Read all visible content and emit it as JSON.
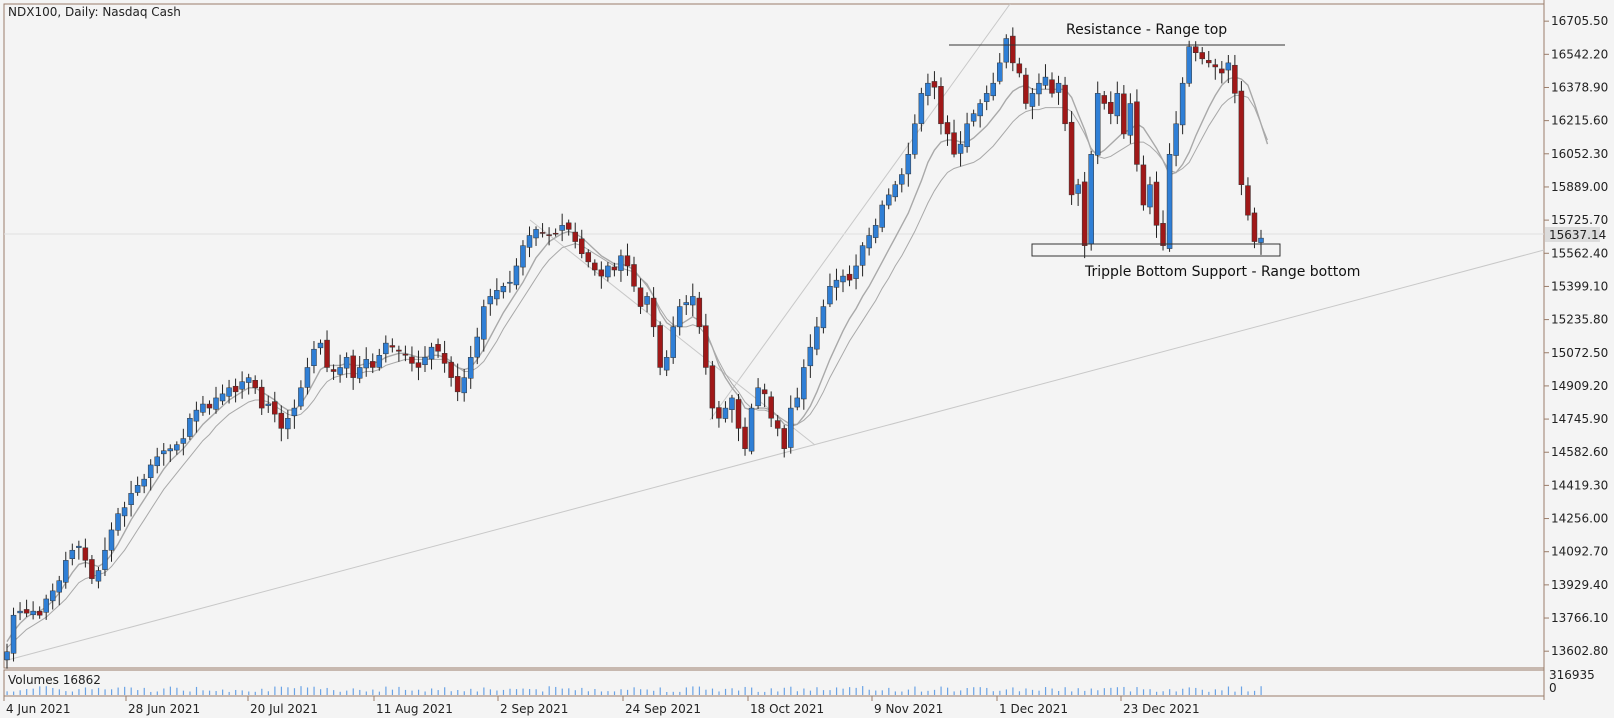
{
  "header": {
    "title": "NDX100, Daily:  Nasdaq Cash"
  },
  "volume_panel": {
    "label": "Volumes 16862",
    "scale_top": "316935",
    "scale_bottom": "0"
  },
  "colors": {
    "bull": "#2f7fd6",
    "bear": "#a01818",
    "ma": "#a9a9a9",
    "frame": "#9a7d6a",
    "line": "#c8c8c8",
    "volume": "#6aa3e6"
  },
  "annotations": {
    "resistance": "Resistance - Range top",
    "support": "Tripple Bottom Support - Range bottom",
    "current_price": "15637.14"
  },
  "chart_data": {
    "type": "candlestick",
    "title": "NDX100, Daily:  Nasdaq Cash",
    "ylabels": [
      "16705.50",
      "16542.20",
      "16378.90",
      "16215.60",
      "16052.30",
      "15889.00",
      "15725.70",
      "15562.40",
      "15399.10",
      "15235.80",
      "15072.50",
      "14909.20",
      "14745.90",
      "14582.60",
      "14419.30",
      "14256.00",
      "14092.70",
      "13929.40",
      "13766.10",
      "13602.80"
    ],
    "xlabels": [
      "4 Jun 2021",
      "28 Jun 2021",
      "20 Jul 2021",
      "11 Aug 2021",
      "2 Sep 2021",
      "24 Sep 2021",
      "18 Oct 2021",
      "9 Nov 2021",
      "1 Dec 2021",
      "23 Dec 2021"
    ],
    "ylim": [
      13520,
      16790
    ],
    "grid": false,
    "resistance_level": 16595,
    "support_zone": [
      15545,
      15595
    ],
    "close_series": [
      13600,
      13780,
      13800,
      13790,
      13800,
      13780,
      13860,
      13900,
      13950,
      14050,
      14100,
      14120,
      14050,
      13960,
      14000,
      14100,
      14200,
      14280,
      14310,
      14380,
      14420,
      14450,
      14520,
      14560,
      14590,
      14600,
      14620,
      14650,
      14750,
      14790,
      14820,
      14800,
      14850,
      14870,
      14900,
      14880,
      14930,
      14950,
      14900,
      14800,
      14820,
      14770,
      14700,
      14750,
      14800,
      14900,
      15000,
      15090,
      15120,
      15000,
      14980,
      15000,
      15050,
      14950,
      15000,
      15040,
      15000,
      15060,
      15120,
      15100,
      15080,
      15060,
      15020,
      15000,
      15050,
      15100,
      15080,
      15020,
      14950,
      14880,
      14950,
      15050,
      15150,
      15300,
      15350,
      15380,
      15400,
      15420,
      15500,
      15600,
      15650,
      15680,
      15660,
      15650,
      15660,
      15700,
      15680,
      15620,
      15560,
      15520,
      15480,
      15450,
      15500,
      15480,
      15550,
      15500,
      15400,
      15300,
      15350,
      15200,
      15000,
      15050,
      15200,
      15300,
      15320,
      15350,
      15200,
      15000,
      14800,
      14750,
      14800,
      14850,
      14700,
      14600,
      14800,
      14900,
      14870,
      14750,
      14700,
      14600,
      14800,
      14850,
      15000,
      15100,
      15200,
      15300,
      15400,
      15430,
      15450,
      15430,
      15500,
      15600,
      15650,
      15700,
      15800,
      15850,
      15900,
      15950,
      16050,
      16200,
      16350,
      16400,
      16380,
      16200,
      16150,
      16050,
      16100,
      16200,
      16250,
      16300,
      16350,
      16400,
      16500,
      16620,
      16500,
      16450,
      16300,
      16350,
      16400,
      16430,
      16350,
      16400,
      16200,
      15850,
      15900,
      15600,
      16050,
      16350,
      16300,
      16250,
      16350,
      16150,
      16300,
      16000,
      15800,
      15900,
      15700,
      15600,
      16050,
      16200,
      16400,
      16580,
      16550,
      16520,
      16500,
      16480,
      16450,
      16500,
      16350,
      15900,
      15750,
      15620,
      15637
    ],
    "ma_fast": [
      13650,
      13700,
      13740,
      13770,
      13790,
      13800,
      13820,
      13850,
      13890,
      13940,
      13990,
      14030,
      14040,
      14030,
      14020,
      14040,
      14080,
      14130,
      14190,
      14250,
      14300,
      14350,
      14400,
      14450,
      14500,
      14540,
      14570,
      14600,
      14640,
      14680,
      14720,
      14750,
      14780,
      14810,
      14840,
      14860,
      14880,
      14900,
      14900,
      14880,
      14860,
      14840,
      14810,
      14790,
      14790,
      14820,
      14870,
      14930,
      14990,
      15010,
      15010,
      15010,
      15020,
      15010,
      15010,
      15020,
      15020,
      15030,
      15050,
      15060,
      15070,
      15070,
      15060,
      15050,
      15050,
      15060,
      15060,
      15050,
      15030,
      15000,
      14990,
      15000,
      15040,
      15090,
      15150,
      15210,
      15270,
      15320,
      15370,
      15420,
      15480,
      15540,
      15580,
      15620,
      15640,
      15660,
      15670,
      15660,
      15640,
      15610,
      15580,
      15550,
      15530,
      15510,
      15510,
      15500,
      15480,
      15440,
      15410,
      15350,
      15270,
      15220,
      15200,
      15210,
      15230,
      15250,
      15230,
      15180,
      15100,
      15010,
      14950,
      14900,
      14860,
      14800,
      14790,
      14800,
      14800,
      14790,
      14760,
      14720,
      14710,
      14720,
      14760,
      14810,
      14880,
      14960,
      15040,
      15110,
      15180,
      15240,
      15290,
      15350,
      15400,
      15460,
      15520,
      15580,
      15640,
      15700,
      15760,
      15840,
      15920,
      16010,
      16070,
      16110,
      16120,
      16120,
      16110,
      16110,
      16130,
      16160,
      16190,
      16230,
      16270,
      16320,
      16360,
      16380,
      16390,
      16370,
      16370,
      16370,
      16370,
      16370,
      16370,
      16330,
      16250,
      16170,
      16070,
      16050,
      16070,
      16100,
      16130,
      16160,
      16170,
      16200,
      16180,
      16130,
      16080,
      16020,
      15950,
      15960,
      16000,
      16060,
      16140,
      16210,
      16280,
      16340,
      16390,
      16420,
      16430,
      16420,
      16390,
      16300,
      16200,
      16100
    ],
    "ma_slow": [
      13620,
      13650,
      13680,
      13710,
      13730,
      13750,
      13770,
      13800,
      13830,
      13860,
      13900,
      13940,
      13960,
      13970,
      13980,
      13990,
      14020,
      14060,
      14100,
      14150,
      14200,
      14250,
      14300,
      14350,
      14400,
      14440,
      14480,
      14520,
      14560,
      14600,
      14640,
      14670,
      14710,
      14740,
      14770,
      14790,
      14810,
      14830,
      14840,
      14840,
      14830,
      14810,
      14790,
      14770,
      14760,
      14770,
      14800,
      14840,
      14890,
      14930,
      14950,
      14960,
      14970,
      14970,
      14970,
      14980,
      14980,
      14990,
      15010,
      15020,
      15030,
      15040,
      15040,
      15040,
      15040,
      15040,
      15040,
      15040,
      15020,
      15000,
      14980,
      14980,
      15000,
      15030,
      15080,
      15130,
      15190,
      15240,
      15290,
      15340,
      15390,
      15440,
      15490,
      15530,
      15560,
      15590,
      15600,
      15610,
      15600,
      15580,
      15560,
      15540,
      15520,
      15500,
      15490,
      15480,
      15470,
      15440,
      15400,
      15350,
      15290,
      15240,
      15210,
      15200,
      15200,
      15210,
      15200,
      15160,
      15100,
      15030,
      14970,
      14920,
      14880,
      14830,
      14800,
      14790,
      14790,
      14780,
      14760,
      14740,
      14720,
      14720,
      14740,
      14770,
      14820,
      14880,
      14950,
      15010,
      15070,
      15130,
      15180,
      15230,
      15280,
      15330,
      15390,
      15440,
      15500,
      15550,
      15610,
      15670,
      15740,
      15810,
      15870,
      15920,
      15960,
      15980,
      15990,
      16000,
      16010,
      16030,
      16060,
      16090,
      16130,
      16170,
      16210,
      16240,
      16260,
      16270,
      16270,
      16280,
      16280,
      16280,
      16280,
      16260,
      16210,
      16150,
      16080,
      16040,
      16030,
      16040,
      16060,
      16080,
      16100,
      16110,
      16110,
      16090,
      16060,
      16020,
      15970,
      15960,
      15980,
      16010,
      16070,
      16130,
      16190,
      16240,
      16290,
      16320,
      16340,
      16340,
      16330,
      16280,
      16200,
      16120
    ]
  }
}
